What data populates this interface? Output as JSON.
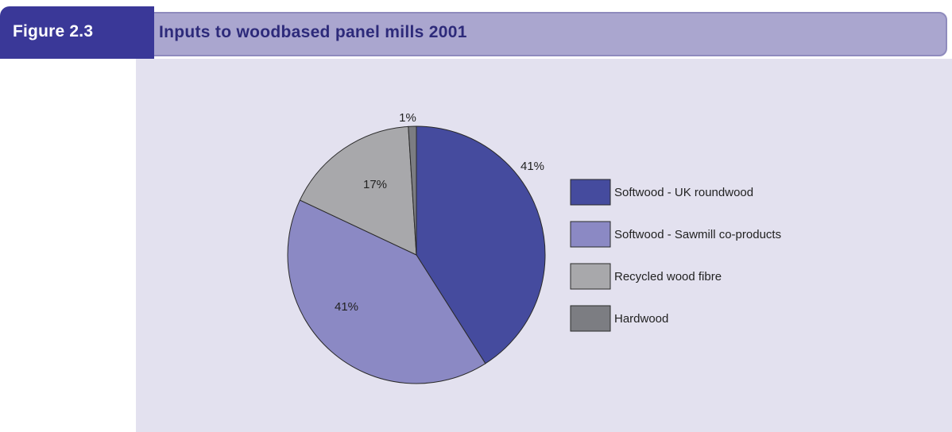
{
  "header": {
    "figure_label": "Figure 2.3",
    "title": "Inputs to woodbased panel mills 2001"
  },
  "colors": {
    "header_bg": "#aaa6cf",
    "figure_tab_bg": "#3a3898",
    "panel_bg": "#e3e1ef"
  },
  "chart_data": {
    "type": "pie",
    "title": "Inputs to woodbased panel mills 2001",
    "legend_position": "right",
    "slices": [
      {
        "label": "Softwood - UK roundwood",
        "value": 41,
        "display": "41%",
        "color": "#454b9e"
      },
      {
        "label": "Softwood - Sawmill co-products",
        "value": 41,
        "display": "41%",
        "color": "#8b89c4"
      },
      {
        "label": "Recycled wood fibre",
        "value": 17,
        "display": "17%",
        "color": "#a8a8ab"
      },
      {
        "label": "Hardwood",
        "value": 1,
        "display": "1%",
        "color": "#7c7d82"
      }
    ]
  }
}
